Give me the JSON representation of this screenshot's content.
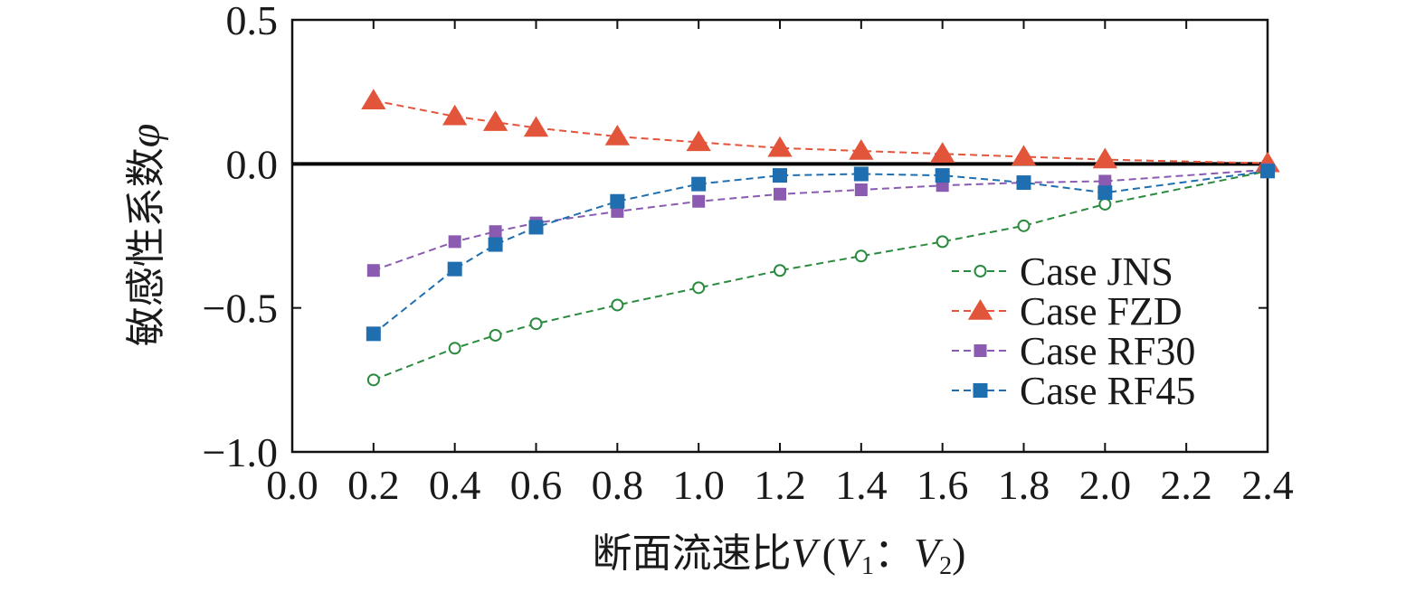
{
  "chart_data": {
    "type": "line",
    "xlabel_main": "断面流速比",
    "xlabel_var": "V",
    "xlabel_paren_open": "(",
    "xlabel_v1": "V",
    "xlabel_sub1": "1",
    "xlabel_colon": "：",
    "xlabel_v2": "V",
    "xlabel_sub2": "2",
    "xlabel_paren_close": ")",
    "ylabel_main": "敏感性系数",
    "ylabel_symbol": "φ",
    "xlim": [
      0.0,
      2.4
    ],
    "ylim": [
      -1.0,
      0.5
    ],
    "xticks": [
      0.0,
      0.2,
      0.4,
      0.6,
      0.8,
      1.0,
      1.2,
      1.4,
      1.6,
      1.8,
      2.0,
      2.2,
      2.4
    ],
    "xtick_labels": [
      "0.0",
      "0.2",
      "0.4",
      "0.6",
      "0.8",
      "1.0",
      "1.2",
      "1.4",
      "1.6",
      "1.8",
      "2.0",
      "2.2",
      "2.4"
    ],
    "yticks": [
      0.5,
      0.0,
      -0.5,
      -1.0
    ],
    "ytick_labels": [
      "0.5",
      "0.0",
      "−0.5",
      "−1.0"
    ],
    "reference_line_y": 0.0,
    "grid": false,
    "legend_position": "lower-right",
    "series": [
      {
        "name": "Case JNS",
        "color": "#2a8a3e",
        "marker": "circle-open",
        "x": [
          0.2,
          0.4,
          0.5,
          0.6,
          0.8,
          1.0,
          1.2,
          1.4,
          1.6,
          1.8,
          2.0,
          2.4
        ],
        "y": [
          -0.75,
          -0.64,
          -0.595,
          -0.555,
          -0.49,
          -0.43,
          -0.37,
          -0.32,
          -0.27,
          -0.215,
          -0.14,
          -0.025
        ]
      },
      {
        "name": "Case FZD",
        "color": "#e2553a",
        "marker": "triangle",
        "x": [
          0.2,
          0.4,
          0.5,
          0.6,
          0.8,
          1.0,
          1.2,
          1.4,
          1.6,
          1.8,
          2.0,
          2.4
        ],
        "y": [
          0.22,
          0.165,
          0.145,
          0.125,
          0.095,
          0.075,
          0.055,
          0.045,
          0.035,
          0.025,
          0.015,
          0.002
        ]
      },
      {
        "name": "Case RF30",
        "color": "#8a5bb0",
        "marker": "square-small",
        "x": [
          0.2,
          0.4,
          0.5,
          0.6,
          0.8,
          1.0,
          1.2,
          1.4,
          1.6,
          1.8,
          2.0,
          2.4
        ],
        "y": [
          -0.37,
          -0.27,
          -0.235,
          -0.205,
          -0.165,
          -0.13,
          -0.105,
          -0.09,
          -0.075,
          -0.065,
          -0.06,
          -0.02
        ]
      },
      {
        "name": "Case RF45",
        "color": "#1f6fb0",
        "marker": "square",
        "x": [
          0.2,
          0.4,
          0.5,
          0.6,
          0.8,
          1.0,
          1.2,
          1.4,
          1.6,
          1.8,
          2.0,
          2.4
        ],
        "y": [
          -0.59,
          -0.365,
          -0.28,
          -0.22,
          -0.13,
          -0.07,
          -0.04,
          -0.035,
          -0.04,
          -0.065,
          -0.1,
          -0.025
        ]
      }
    ]
  }
}
